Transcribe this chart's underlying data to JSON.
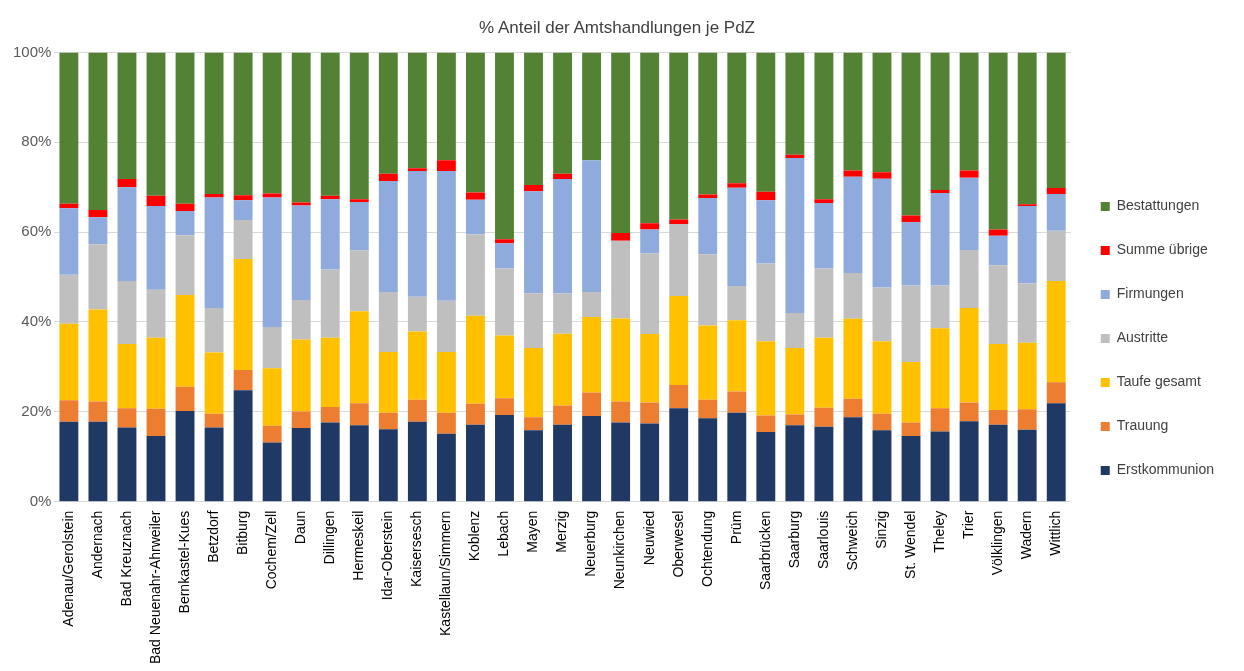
{
  "chart_data": {
    "type": "bar",
    "title": "% Anteil der Amtshandlungen je PdZ",
    "stacked": true,
    "categories": [
      "Adenau/Gerolstein",
      "Andernach",
      "Bad Kreuznach",
      "Bad Neuenahr-Ahrweiler",
      "Bernkastel-Kues",
      "Betzdorf",
      "Bitburg",
      "Cochem/Zell",
      "Daun",
      "Dillingen",
      "Hermeskeil",
      "Idar-Oberstein",
      "Kaisersesch",
      "Kastellaun/Simmern",
      "Koblenz",
      "Lebach",
      "Mayen",
      "Merzig",
      "Neuerburg",
      "Neunkirchen",
      "Neuwied",
      "Oberwesel",
      "Ochtendung",
      "Prüm",
      "Saarbrücken",
      "Saarburg",
      "Saarlouis",
      "Schweich",
      "Sinzig",
      "St. Wendel",
      "Theley",
      "Trier",
      "Völklingen",
      "Wadern",
      "Wittlich"
    ],
    "series": [
      {
        "name": "Erstkommunion",
        "color": "#203864",
        "values": [
          17.8,
          17.8,
          16.5,
          14.6,
          20.2,
          16.5,
          24.8,
          13.2,
          16.4,
          17.6,
          17.0,
          16.1,
          17.8,
          15.1,
          17.1,
          19.3,
          15.9,
          17.1,
          19.1,
          17.6,
          17.4,
          20.8,
          18.6,
          19.8,
          15.5,
          17.0,
          16.7,
          18.8,
          15.9,
          14.6,
          15.6,
          17.9,
          17.1,
          16.0,
          21.9
        ]
      },
      {
        "name": "Trauung",
        "color": "#ed7d31",
        "values": [
          4.8,
          4.5,
          4.3,
          6.1,
          5.4,
          3.1,
          4.5,
          3.7,
          3.7,
          3.5,
          4.9,
          3.7,
          4.9,
          4.7,
          4.7,
          3.7,
          2.9,
          4.3,
          5.2,
          4.7,
          4.7,
          5.2,
          4.1,
          4.7,
          3.7,
          2.4,
          4.2,
          4.1,
          3.7,
          3.0,
          5.2,
          4.2,
          3.3,
          4.6,
          4.7
        ]
      },
      {
        "name": "Taufe gesamt",
        "color": "#ffc000",
        "values": [
          17.0,
          20.5,
          14.3,
          15.8,
          20.4,
          13.6,
          24.7,
          12.8,
          16.0,
          15.4,
          20.5,
          13.5,
          15.2,
          13.5,
          19.6,
          14.0,
          15.4,
          16.0,
          16.8,
          18.5,
          15.2,
          19.8,
          16.5,
          15.9,
          16.5,
          14.8,
          15.6,
          17.8,
          16.1,
          13.5,
          17.8,
          21.0,
          14.7,
          14.8,
          22.5
        ]
      },
      {
        "name": "Austritte",
        "color": "#bfbfbf",
        "values": [
          10.9,
          14.5,
          14.0,
          10.7,
          13.3,
          9.9,
          8.7,
          9.2,
          8.8,
          15.2,
          13.5,
          13.4,
          7.7,
          11.4,
          18.1,
          14.9,
          12.2,
          9.0,
          5.6,
          17.3,
          18.0,
          16.0,
          15.9,
          7.6,
          17.3,
          7.8,
          15.4,
          10.2,
          12.0,
          17.0,
          9.5,
          12.9,
          17.5,
          13.2,
          11.2
        ]
      },
      {
        "name": "Firmungen",
        "color": "#8faadc",
        "values": [
          14.8,
          6.0,
          20.9,
          18.6,
          5.4,
          24.6,
          4.4,
          28.8,
          21.0,
          15.6,
          10.8,
          24.7,
          28.0,
          28.9,
          7.7,
          5.6,
          22.7,
          25.4,
          29.3,
          0,
          5.3,
          0,
          12.5,
          21.9,
          14.1,
          34.5,
          14.6,
          21.4,
          24.2,
          14.1,
          20.6,
          16.1,
          6.6,
          17.2,
          8.2
        ]
      },
      {
        "name": "Summe übrige",
        "color": "#ff0000",
        "values": [
          1.0,
          1.6,
          1.8,
          2.3,
          1.6,
          0.8,
          1.1,
          0.9,
          0.7,
          0.8,
          0.6,
          1.6,
          0.6,
          2.4,
          1.6,
          0.9,
          1.4,
          1.2,
          0,
          1.7,
          1.4,
          1.0,
          0.8,
          1.0,
          1.9,
          0.7,
          0.8,
          1.4,
          1.4,
          1.5,
          0.7,
          1.6,
          1.4,
          0.4,
          1.3
        ]
      },
      {
        "name": "Bestattungen",
        "color": "#548235",
        "values": [
          33.7,
          35.1,
          28.2,
          31.9,
          33.7,
          31.5,
          31.8,
          31.4,
          33.4,
          31.9,
          32.7,
          27.0,
          25.8,
          24.0,
          31.2,
          41.6,
          29.5,
          27.0,
          24.0,
          40.2,
          38.0,
          37.2,
          31.6,
          29.1,
          31.0,
          22.8,
          32.7,
          26.3,
          26.7,
          36.3,
          30.6,
          26.3,
          39.4,
          33.8,
          30.2
        ]
      }
    ],
    "ylim": [
      0,
      100
    ],
    "yticks": [
      {
        "value": 0,
        "label": "0%"
      },
      {
        "value": 20,
        "label": "20%"
      },
      {
        "value": 40,
        "label": "40%"
      },
      {
        "value": 60,
        "label": "60%"
      },
      {
        "value": 80,
        "label": "80%"
      },
      {
        "value": 100,
        "label": "100%"
      }
    ],
    "grid": "y",
    "legend": "right"
  }
}
